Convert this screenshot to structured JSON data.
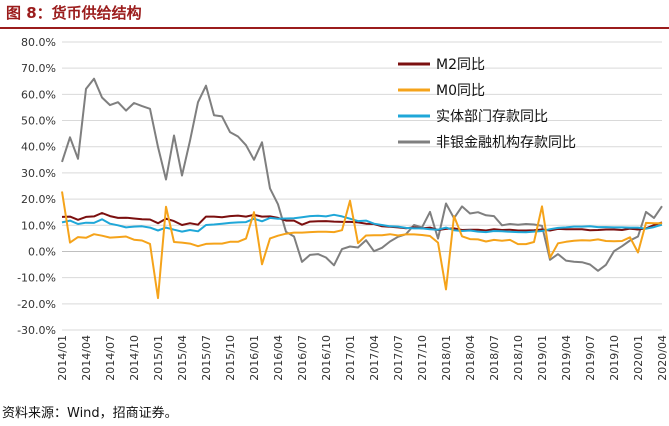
{
  "figure": {
    "title": "图 8：货币供给结构",
    "source": "资料来源：Wind，招商证券。"
  },
  "chart_data": {
    "type": "line",
    "title": "",
    "xlabel": "",
    "ylabel": "",
    "ylim": [
      -30,
      80
    ],
    "y_ticks": [
      "80.0%",
      "70.0%",
      "60.0%",
      "50.0%",
      "40.0%",
      "30.0%",
      "20.0%",
      "10.0%",
      "0.0%",
      "-10.0%",
      "-20.0%",
      "-30.0%"
    ],
    "x_tick_labels": [
      "2014/01",
      "2014/04",
      "2014/07",
      "2014/10",
      "2015/01",
      "2015/04",
      "2015/07",
      "2015/10",
      "2016/01",
      "2016/04",
      "2016/07",
      "2016/10",
      "2017/01",
      "2017/04",
      "2017/07",
      "2017/10",
      "2018/01",
      "2018/04",
      "2018/07",
      "2018/10",
      "2019/01",
      "2019/04",
      "2019/07",
      "2019/10",
      "2020/01",
      "2020/04"
    ],
    "grid": true,
    "legend_position": "top-right",
    "x_months": [
      "2014/01",
      "2014/02",
      "2014/03",
      "2014/04",
      "2014/05",
      "2014/06",
      "2014/07",
      "2014/08",
      "2014/09",
      "2014/10",
      "2014/11",
      "2014/12",
      "2015/01",
      "2015/02",
      "2015/03",
      "2015/04",
      "2015/05",
      "2015/06",
      "2015/07",
      "2015/08",
      "2015/09",
      "2015/10",
      "2015/11",
      "2015/12",
      "2016/01",
      "2016/02",
      "2016/03",
      "2016/04",
      "2016/05",
      "2016/06",
      "2016/07",
      "2016/08",
      "2016/09",
      "2016/10",
      "2016/11",
      "2016/12",
      "2017/01",
      "2017/02",
      "2017/03",
      "2017/04",
      "2017/05",
      "2017/06",
      "2017/07",
      "2017/08",
      "2017/09",
      "2017/10",
      "2017/11",
      "2017/12",
      "2018/01",
      "2018/02",
      "2018/03",
      "2018/04",
      "2018/05",
      "2018/06",
      "2018/07",
      "2018/08",
      "2018/09",
      "2018/10",
      "2018/11",
      "2018/12",
      "2019/01",
      "2019/02",
      "2019/03",
      "2019/04",
      "2019/05",
      "2019/06",
      "2019/07",
      "2019/08",
      "2019/09",
      "2019/10",
      "2019/11",
      "2019/12",
      "2020/01",
      "2020/02",
      "2020/03",
      "2020/04"
    ],
    "series": [
      {
        "name": "M2同比",
        "color": "#7b0f0f",
        "values": [
          13.2,
          13.3,
          12.1,
          13.2,
          13.4,
          14.7,
          13.5,
          12.8,
          12.9,
          12.6,
          12.3,
          12.2,
          10.8,
          12.5,
          11.6,
          10.1,
          10.8,
          10.2,
          13.3,
          13.3,
          13.1,
          13.5,
          13.7,
          13.3,
          14.0,
          13.3,
          13.4,
          12.8,
          11.8,
          11.8,
          10.2,
          11.4,
          11.5,
          11.6,
          11.4,
          11.3,
          11.3,
          11.1,
          10.6,
          10.5,
          9.6,
          9.4,
          9.2,
          8.9,
          9.2,
          8.8,
          9.1,
          8.2,
          8.6,
          8.8,
          8.2,
          8.3,
          8.3,
          8.0,
          8.5,
          8.2,
          8.3,
          8.0,
          8.0,
          8.1,
          8.4,
          8.0,
          8.6,
          8.5,
          8.5,
          8.5,
          8.1,
          8.2,
          8.4,
          8.4,
          8.2,
          8.7,
          8.4,
          8.8,
          10.1,
          11.1
        ]
      },
      {
        "name": "M0同比",
        "color": "#f5a31a",
        "values": [
          22.9,
          3.4,
          5.5,
          5.2,
          6.6,
          6.0,
          5.3,
          5.5,
          5.7,
          4.5,
          4.2,
          2.9,
          -17.8,
          17.1,
          3.6,
          3.4,
          3.0,
          2.0,
          2.9,
          3.0,
          3.0,
          3.7,
          3.7,
          4.9,
          15.0,
          -4.9,
          5.0,
          6.0,
          6.8,
          7.2,
          7.2,
          7.4,
          7.5,
          7.5,
          7.4,
          8.1,
          19.4,
          3.2,
          6.1,
          6.2,
          6.2,
          6.6,
          6.1,
          6.5,
          6.5,
          6.3,
          5.9,
          3.4,
          -14.5,
          13.5,
          5.8,
          4.7,
          4.6,
          3.8,
          4.4,
          4.1,
          4.4,
          2.8,
          2.8,
          3.6,
          17.2,
          -2.4,
          3.1,
          3.7,
          4.1,
          4.3,
          4.2,
          4.6,
          4.0,
          3.9,
          4.0,
          5.4,
          -0.4,
          10.9,
          10.8,
          10.8
        ]
      },
      {
        "name": "实体部门存款同比",
        "color": "#1fa7d8",
        "values": [
          11.1,
          11.8,
          10.5,
          11.0,
          10.9,
          12.3,
          10.6,
          10.0,
          9.2,
          9.5,
          9.6,
          9.1,
          8.0,
          9.1,
          8.3,
          7.6,
          8.2,
          7.7,
          10.1,
          10.3,
          10.6,
          10.9,
          11.1,
          11.2,
          12.5,
          11.5,
          12.8,
          12.5,
          12.6,
          12.7,
          13.1,
          13.5,
          13.6,
          13.4,
          14.0,
          13.4,
          12.5,
          11.6,
          11.8,
          10.6,
          10.1,
          9.6,
          9.5,
          9.0,
          8.8,
          8.8,
          8.5,
          8.3,
          9.1,
          8.1,
          7.8,
          8.0,
          7.6,
          7.4,
          7.8,
          7.7,
          7.5,
          7.4,
          7.3,
          7.6,
          7.8,
          8.5,
          9.0,
          9.2,
          9.5,
          9.5,
          9.6,
          9.3,
          9.3,
          9.2,
          9.2,
          9.1,
          9.1,
          8.7,
          9.3,
          10.2
        ]
      },
      {
        "name": "非银金融机构存款同比",
        "color": "#7f7f7f",
        "values": [
          34.2,
          43.6,
          35.4,
          62.1,
          66.0,
          58.8,
          55.9,
          57.0,
          53.8,
          56.7,
          55.5,
          54.5,
          39.9,
          27.5,
          44.3,
          29.0,
          42.3,
          57.0,
          63.3,
          52.0,
          51.6,
          45.6,
          43.9,
          40.6,
          35.0,
          41.7,
          24.1,
          18.0,
          7.5,
          5.7,
          -4.0,
          -1.3,
          -1.0,
          -2.3,
          -5.3,
          0.9,
          1.9,
          1.5,
          4.3,
          0.1,
          1.4,
          3.8,
          5.6,
          6.6,
          10.1,
          9.2,
          15.1,
          4.9,
          18.3,
          12.7,
          17.2,
          14.5,
          15.0,
          13.8,
          13.5,
          10.0,
          10.5,
          10.2,
          10.5,
          10.3,
          9.8,
          -3.2,
          -1.0,
          -3.5,
          -3.9,
          -4.1,
          -5.0,
          -7.4,
          -5.1,
          0.1,
          2.0,
          4.2,
          5.7,
          15.1,
          12.8,
          17.3
        ]
      }
    ]
  }
}
